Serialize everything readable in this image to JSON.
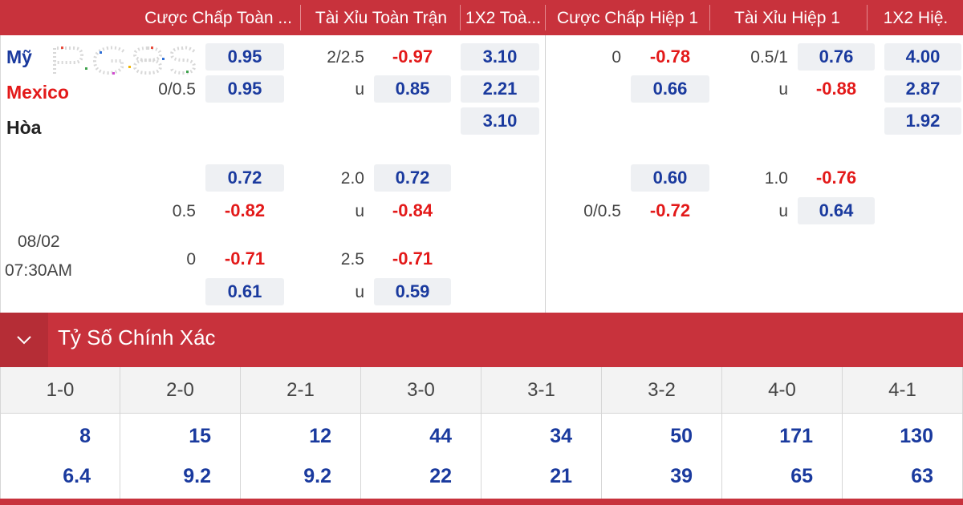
{
  "columns": [
    "Cược Chấp Toàn ...",
    "Tài Xỉu Toàn Trận",
    "1X2 Toà...",
    "Cược Chấp Hiệp 1",
    "Tài Xỉu Hiệp 1",
    "1X2 Hiệ."
  ],
  "match": {
    "home": "Mỹ",
    "away": "Mexico",
    "draw": "Hòa",
    "date": "08/02",
    "time": "07:30AM"
  },
  "labels": {
    "hc_main": "0/0.5",
    "ou_main": "2/2.5",
    "under": "u",
    "h1_hc_main": "0",
    "h1_ou_main": "0.5/1",
    "hc_alt1": "0.5",
    "ou_alt1": "2.0",
    "h1_hc_alt1": "0/0.5",
    "h1_ou_alt1": "1.0",
    "hc_alt2": "0",
    "ou_alt2": "2.5"
  },
  "odds": {
    "hc_main_home": "0.95",
    "hc_main_away": "0.95",
    "ou_main_over": "-0.97",
    "ou_main_under": "0.85",
    "x12_home": "3.10",
    "x12_away": "2.21",
    "x12_draw": "3.10",
    "h1_hc_home": "-0.78",
    "h1_hc_away": "0.66",
    "h1_ou_over": "0.76",
    "h1_ou_under": "-0.88",
    "h1_x12_home": "4.00",
    "h1_x12_away": "2.87",
    "h1_x12_draw": "1.92",
    "hc_alt1_home": "0.72",
    "hc_alt1_away": "-0.82",
    "ou_alt1_over": "0.72",
    "ou_alt1_under": "-0.84",
    "h1_hc_alt1_home": "0.60",
    "h1_hc_alt1_away": "-0.72",
    "h1_ou_alt1_over": "-0.76",
    "h1_ou_alt1_under": "0.64",
    "hc_alt2_home": "-0.71",
    "hc_alt2_away": "0.61",
    "ou_alt2_over": "-0.71",
    "ou_alt2_under": "0.59"
  },
  "section": {
    "title": "Tỷ Số Chính Xác"
  },
  "scores": [
    {
      "score": "1-0",
      "v1": "8",
      "v2": "6.4"
    },
    {
      "score": "2-0",
      "v1": "15",
      "v2": "9.2"
    },
    {
      "score": "2-1",
      "v1": "12",
      "v2": "9.2"
    },
    {
      "score": "3-0",
      "v1": "44",
      "v2": "22"
    },
    {
      "score": "3-1",
      "v1": "34",
      "v2": "21"
    },
    {
      "score": "3-2",
      "v1": "50",
      "v2": "39"
    },
    {
      "score": "4-0",
      "v1": "171",
      "v2": "65"
    },
    {
      "score": "4-1",
      "v1": "130",
      "v2": "63"
    }
  ],
  "colors": {
    "header_red": "#c8323c",
    "positive_blue": "#1a3a9e",
    "negative_red": "#e31919"
  }
}
